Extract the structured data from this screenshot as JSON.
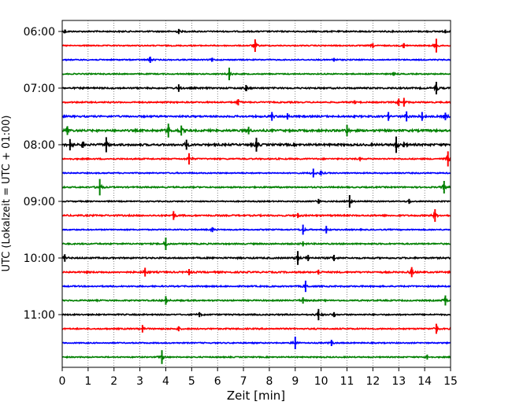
{
  "chart_data": {
    "type": "line",
    "title": "",
    "xlabel": "Zeit  [min]",
    "ylabel": "UTC (Lokalzeit = UTC + 01:00)",
    "xlim": [
      0,
      15
    ],
    "x_ticks": [
      0,
      1,
      2,
      3,
      4,
      5,
      6,
      7,
      8,
      9,
      10,
      11,
      12,
      13,
      14,
      15
    ],
    "x_tick_labels": [
      "0",
      "1",
      "2",
      "3",
      "4",
      "5",
      "6",
      "7",
      "8",
      "9",
      "10",
      "11",
      "12",
      "13",
      "14",
      "15"
    ],
    "y_tick_labels": [
      "06:00",
      "07:00",
      "08:00",
      "09:00",
      "10:00",
      "11:00"
    ],
    "grid": "vertical dotted",
    "trace_interval_min": 15,
    "color_cycle": [
      "#000000",
      "#ff0000",
      "#0000ff",
      "#008000"
    ],
    "series": [
      {
        "start": "06:00",
        "color": "#000000",
        "noise": 0.35,
        "spikes": [
          [
            0.1,
            0.3
          ],
          [
            4.5,
            0.4
          ],
          [
            14.8,
            0.3
          ]
        ]
      },
      {
        "start": "06:15",
        "color": "#ff0000",
        "noise": 0.3,
        "spikes": [
          [
            7.45,
            1.0
          ],
          [
            12.0,
            0.4
          ],
          [
            13.2,
            0.4
          ],
          [
            14.45,
            1.1
          ]
        ]
      },
      {
        "start": "06:30",
        "color": "#0000ff",
        "noise": 0.3,
        "spikes": [
          [
            3.4,
            0.5
          ],
          [
            5.8,
            0.3
          ],
          [
            10.5,
            0.3
          ]
        ]
      },
      {
        "start": "06:45",
        "color": "#008000",
        "noise": 0.3,
        "spikes": [
          [
            6.45,
            1.0
          ],
          [
            12.8,
            0.3
          ]
        ]
      },
      {
        "start": "07:00",
        "color": "#000000",
        "noise": 0.4,
        "spikes": [
          [
            4.5,
            0.6
          ],
          [
            7.1,
            0.5
          ],
          [
            14.45,
            1.0
          ]
        ]
      },
      {
        "start": "07:15",
        "color": "#ff0000",
        "noise": 0.35,
        "spikes": [
          [
            6.8,
            0.5
          ],
          [
            11.3,
            0.3
          ],
          [
            13.0,
            0.6
          ],
          [
            13.2,
            0.7
          ]
        ]
      },
      {
        "start": "07:30",
        "color": "#0000ff",
        "noise": 0.45,
        "spikes": [
          [
            8.1,
            0.7
          ],
          [
            8.7,
            0.5
          ],
          [
            12.6,
            0.7
          ],
          [
            13.3,
            0.8
          ],
          [
            13.9,
            0.7
          ],
          [
            14.8,
            0.6
          ]
        ]
      },
      {
        "start": "07:45",
        "color": "#008000",
        "noise": 0.55,
        "spikes": [
          [
            0.2,
            0.7
          ],
          [
            4.1,
            1.1
          ],
          [
            4.6,
            0.8
          ],
          [
            7.2,
            0.6
          ],
          [
            11.0,
            0.9
          ]
        ]
      },
      {
        "start": "08:00",
        "color": "#000000",
        "noise": 0.55,
        "spikes": [
          [
            0.3,
            0.9
          ],
          [
            0.8,
            0.5
          ],
          [
            1.7,
            1.2
          ],
          [
            4.8,
            0.8
          ],
          [
            7.5,
            1.1
          ],
          [
            12.9,
            1.3
          ],
          [
            13.2,
            0.4
          ]
        ]
      },
      {
        "start": "08:15",
        "color": "#ff0000",
        "noise": 0.35,
        "spikes": [
          [
            4.9,
            0.9
          ],
          [
            11.5,
            0.3
          ],
          [
            14.9,
            1.2
          ]
        ]
      },
      {
        "start": "08:30",
        "color": "#0000ff",
        "noise": 0.3,
        "spikes": [
          [
            9.7,
            0.7
          ],
          [
            10.0,
            0.4
          ]
        ]
      },
      {
        "start": "08:45",
        "color": "#008000",
        "noise": 0.35,
        "spikes": [
          [
            1.45,
            1.3
          ],
          [
            14.75,
            1.0
          ]
        ]
      },
      {
        "start": "09:00",
        "color": "#000000",
        "noise": 0.3,
        "spikes": [
          [
            9.9,
            0.4
          ],
          [
            11.1,
            1.0
          ],
          [
            13.4,
            0.4
          ]
        ]
      },
      {
        "start": "09:15",
        "color": "#ff0000",
        "noise": 0.4,
        "spikes": [
          [
            4.3,
            0.7
          ],
          [
            9.1,
            0.4
          ],
          [
            14.4,
            1.0
          ]
        ]
      },
      {
        "start": "09:30",
        "color": "#0000ff",
        "noise": 0.3,
        "spikes": [
          [
            5.8,
            0.4
          ],
          [
            9.3,
            0.8
          ],
          [
            10.2,
            0.6
          ]
        ]
      },
      {
        "start": "09:45",
        "color": "#008000",
        "noise": 0.35,
        "spikes": [
          [
            4.0,
            1.0
          ],
          [
            9.3,
            0.4
          ]
        ]
      },
      {
        "start": "10:00",
        "color": "#000000",
        "noise": 0.4,
        "spikes": [
          [
            0.1,
            0.6
          ],
          [
            9.1,
            1.1
          ],
          [
            9.5,
            0.5
          ],
          [
            10.5,
            0.5
          ]
        ]
      },
      {
        "start": "10:15",
        "color": "#ff0000",
        "noise": 0.4,
        "spikes": [
          [
            3.2,
            0.7
          ],
          [
            4.9,
            0.5
          ],
          [
            9.9,
            0.4
          ],
          [
            13.5,
            0.8
          ]
        ]
      },
      {
        "start": "10:30",
        "color": "#0000ff",
        "noise": 0.35,
        "spikes": [
          [
            9.4,
            0.9
          ]
        ]
      },
      {
        "start": "10:45",
        "color": "#008000",
        "noise": 0.35,
        "spikes": [
          [
            4.0,
            0.7
          ],
          [
            9.3,
            0.5
          ],
          [
            14.8,
            0.8
          ]
        ]
      },
      {
        "start": "11:00",
        "color": "#000000",
        "noise": 0.35,
        "spikes": [
          [
            5.3,
            0.4
          ],
          [
            9.9,
            0.9
          ],
          [
            10.5,
            0.4
          ]
        ]
      },
      {
        "start": "11:15",
        "color": "#ff0000",
        "noise": 0.35,
        "spikes": [
          [
            3.1,
            0.6
          ],
          [
            4.5,
            0.4
          ],
          [
            14.45,
            0.8
          ]
        ]
      },
      {
        "start": "11:30",
        "color": "#0000ff",
        "noise": 0.3,
        "spikes": [
          [
            9.0,
            1.0
          ],
          [
            10.4,
            0.5
          ]
        ]
      },
      {
        "start": "11:45",
        "color": "#008000",
        "noise": 0.3,
        "spikes": [
          [
            3.85,
            1.1
          ],
          [
            14.1,
            0.4
          ]
        ]
      }
    ]
  }
}
